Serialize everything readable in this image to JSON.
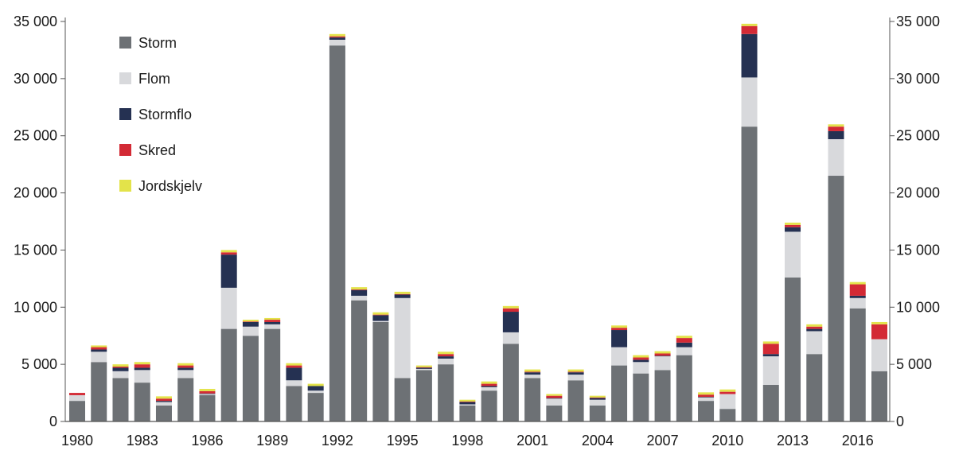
{
  "chart_data": {
    "type": "bar",
    "stacked": true,
    "title": "",
    "xlabel": "",
    "ylabel": "",
    "ylim": [
      0,
      35000
    ],
    "yticks": [
      0,
      5000,
      10000,
      15000,
      20000,
      25000,
      30000,
      35000
    ],
    "ytick_labels": [
      "0",
      "5 000",
      "10 000",
      "15 000",
      "20 000",
      "25 000",
      "30 000",
      "35 000"
    ],
    "right_axis_mirrored": true,
    "grid": false,
    "legend_position": "top-left",
    "xtick_labels": [
      "1980",
      "1983",
      "1986",
      "1989",
      "1992",
      "1995",
      "1998",
      "2001",
      "2004",
      "2007",
      "2010",
      "2013",
      "2016"
    ],
    "categories": [
      "1980",
      "1981",
      "1982",
      "1983",
      "1984",
      "1985",
      "1986",
      "1987",
      "1988",
      "1989",
      "1990",
      "1991",
      "1992",
      "1993",
      "1994",
      "1995",
      "1996",
      "1997",
      "1998",
      "1999",
      "2000",
      "2001",
      "2002",
      "2003",
      "2004",
      "2005",
      "2006",
      "2007",
      "2008",
      "2009",
      "2010",
      "2011",
      "2012",
      "2013",
      "2014",
      "2015",
      "2016",
      "2017"
    ],
    "series": [
      {
        "name": "Storm",
        "color": "#6d7175",
        "values": [
          1800,
          5200,
          3800,
          3400,
          1400,
          3800,
          2300,
          8100,
          7500,
          8100,
          3100,
          2500,
          32900,
          10600,
          8700,
          3800,
          4500,
          5000,
          1400,
          2700,
          6800,
          3800,
          1400,
          3600,
          1400,
          4900,
          4200,
          4500,
          5800,
          1800,
          1100,
          25800,
          3200,
          12600,
          5900,
          21500,
          9900,
          4400
        ]
      },
      {
        "name": "Flom",
        "color": "#d8d9dc",
        "values": [
          500,
          900,
          600,
          1100,
          300,
          700,
          100,
          3600,
          800,
          400,
          500,
          200,
          500,
          400,
          100,
          7000,
          100,
          500,
          100,
          300,
          1000,
          300,
          600,
          500,
          500,
          1600,
          1000,
          1200,
          700,
          300,
          1300,
          4300,
          2500,
          4000,
          2000,
          3200,
          900,
          2800
        ]
      },
      {
        "name": "Stormflo",
        "color": "#253152",
        "values": [
          0,
          200,
          300,
          200,
          100,
          200,
          50,
          2900,
          400,
          200,
          1100,
          400,
          200,
          500,
          500,
          300,
          100,
          200,
          200,
          100,
          1800,
          200,
          50,
          200,
          150,
          1500,
          200,
          50,
          400,
          50,
          0,
          3800,
          200,
          400,
          200,
          700,
          200,
          0
        ]
      },
      {
        "name": "Skred",
        "color": "#d32a35",
        "values": [
          200,
          200,
          100,
          300,
          200,
          200,
          200,
          200,
          50,
          200,
          200,
          0,
          100,
          50,
          50,
          50,
          50,
          200,
          50,
          200,
          300,
          50,
          200,
          50,
          50,
          200,
          200,
          200,
          400,
          200,
          200,
          700,
          900,
          200,
          200,
          400,
          1000,
          1300
        ]
      },
      {
        "name": "Jordskjelv",
        "color": "#e3e34a",
        "values": [
          0,
          150,
          200,
          200,
          200,
          200,
          200,
          200,
          150,
          150,
          200,
          200,
          200,
          200,
          200,
          200,
          150,
          200,
          150,
          200,
          200,
          200,
          150,
          200,
          150,
          200,
          200,
          200,
          200,
          200,
          200,
          200,
          200,
          200,
          200,
          200,
          200,
          200
        ]
      }
    ]
  }
}
